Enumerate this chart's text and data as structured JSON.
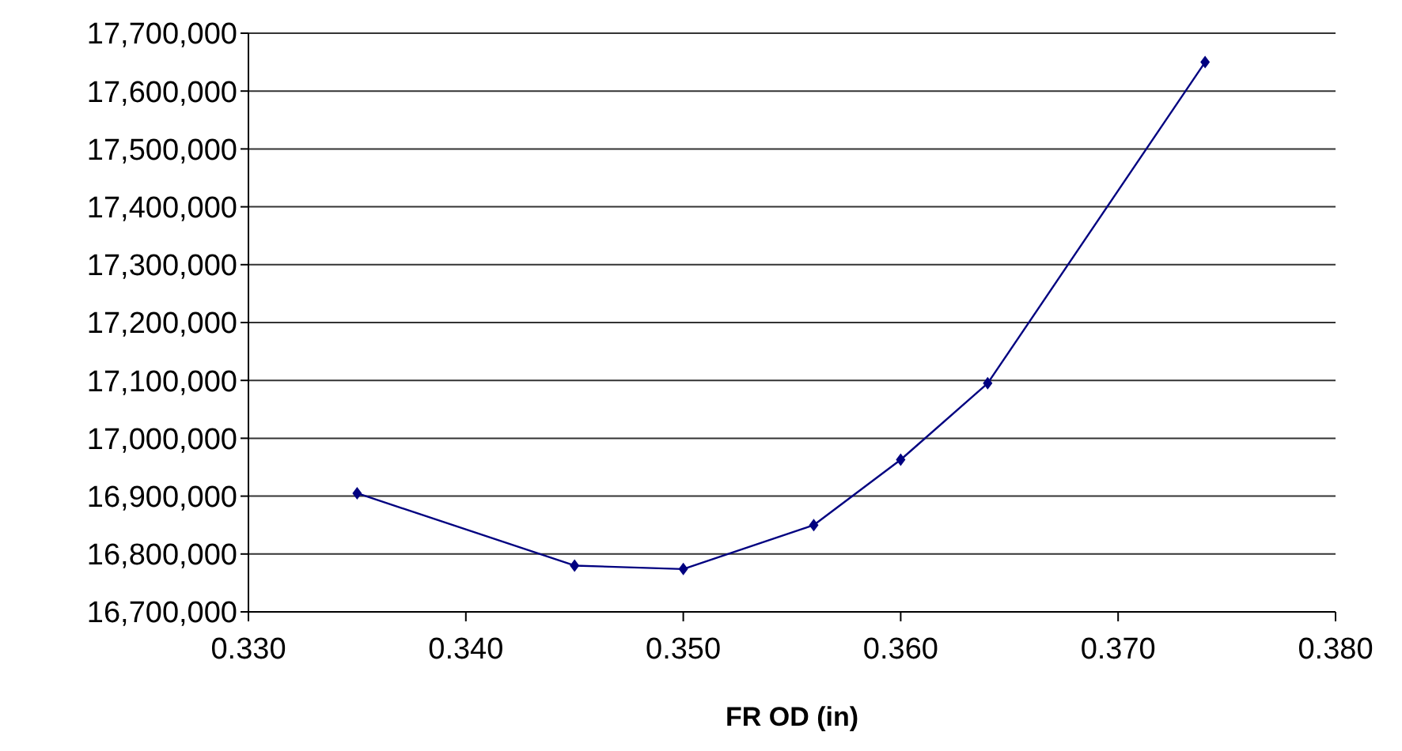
{
  "chart_data": {
    "type": "line",
    "xlabel": "FR OD (in)",
    "x": [
      0.335,
      0.345,
      0.35,
      0.356,
      0.36,
      0.364,
      0.374
    ],
    "series": [
      {
        "color": "#000080",
        "values": [
          16905000,
          16780000,
          16774000,
          16850000,
          16963000,
          17095000,
          17650000
        ]
      }
    ],
    "xlim": [
      0.33,
      0.38
    ],
    "xticks": [
      {
        "value": 0.33,
        "label": "0.330"
      },
      {
        "value": 0.34,
        "label": "0.340"
      },
      {
        "value": 0.35,
        "label": "0.350"
      },
      {
        "value": 0.36,
        "label": "0.360"
      },
      {
        "value": 0.37,
        "label": "0.370"
      },
      {
        "value": 0.38,
        "label": "0.380"
      }
    ],
    "ylim": [
      16700000,
      17700000
    ],
    "yticks": [
      {
        "value": 16700000,
        "label": "16,700,000"
      },
      {
        "value": 16800000,
        "label": "16,800,000"
      },
      {
        "value": 16900000,
        "label": "16,900,000"
      },
      {
        "value": 17000000,
        "label": "17,000,000"
      },
      {
        "value": 17100000,
        "label": "17,100,000"
      },
      {
        "value": 17200000,
        "label": "17,200,000"
      },
      {
        "value": 17300000,
        "label": "17,300,000"
      },
      {
        "value": 17400000,
        "label": "17,400,000"
      },
      {
        "value": 17500000,
        "label": "17,500,000"
      },
      {
        "value": 17600000,
        "label": "17,600,000"
      },
      {
        "value": 17700000,
        "label": "17,700,000"
      }
    ],
    "grid": "y",
    "marker": "diamond",
    "line_style": "solid",
    "legend": false
  }
}
